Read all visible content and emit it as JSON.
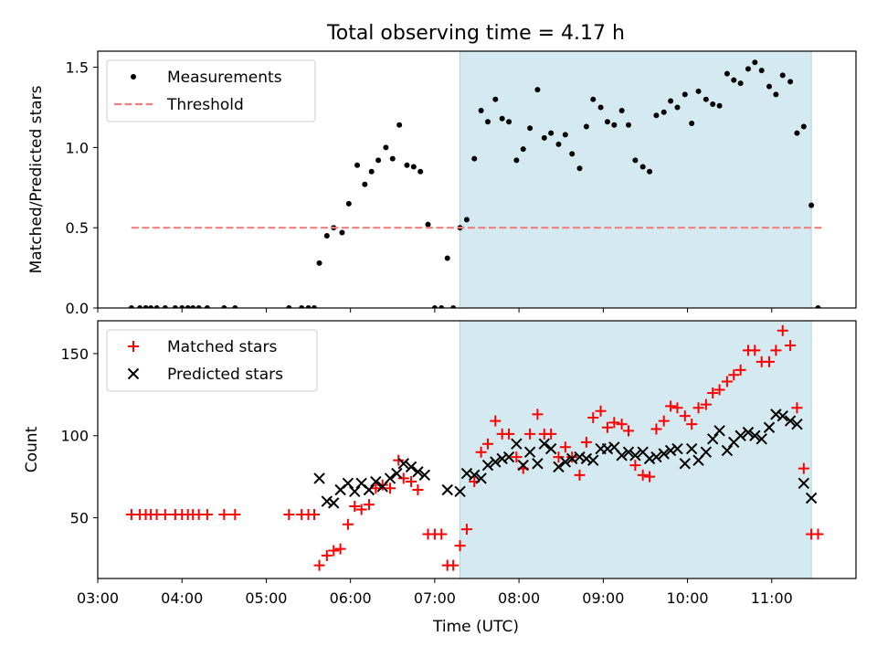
{
  "title": "Total observing time = 4.17 h",
  "chart_data": [
    {
      "type": "scatter",
      "xlabel": "Time (UTC)",
      "ylabel": "Matched/Predicted stars",
      "x_unit": "hours UTC",
      "xlim": [
        3.0,
        12.0
      ],
      "ylim": [
        0.0,
        1.6
      ],
      "x_ticks": [
        "03:00",
        "04:00",
        "05:00",
        "06:00",
        "07:00",
        "08:00",
        "09:00",
        "10:00",
        "11:00"
      ],
      "y_ticks": [
        "0.0",
        "0.5",
        "1.0",
        "1.5"
      ],
      "shaded_region": {
        "x": [
          7.3,
          11.47
        ],
        "color": "#d4eaf0"
      },
      "legend_position": "upper left",
      "series": [
        {
          "name": "Measurements",
          "color": "#000000",
          "marker": "dot",
          "points": [
            [
              3.4,
              0
            ],
            [
              3.5,
              0
            ],
            [
              3.57,
              0
            ],
            [
              3.63,
              0
            ],
            [
              3.7,
              0
            ],
            [
              3.8,
              0
            ],
            [
              3.92,
              0
            ],
            [
              4.0,
              0
            ],
            [
              4.07,
              0
            ],
            [
              4.13,
              0
            ],
            [
              4.2,
              0
            ],
            [
              4.3,
              0
            ],
            [
              4.5,
              0
            ],
            [
              4.63,
              0
            ],
            [
              5.27,
              0
            ],
            [
              5.42,
              0
            ],
            [
              5.5,
              0
            ],
            [
              5.57,
              0
            ],
            [
              5.63,
              0.28
            ],
            [
              5.72,
              0.45
            ],
            [
              5.8,
              0.5
            ],
            [
              5.9,
              0.47
            ],
            [
              5.98,
              0.65
            ],
            [
              6.08,
              0.89
            ],
            [
              6.17,
              0.77
            ],
            [
              6.25,
              0.85
            ],
            [
              6.33,
              0.92
            ],
            [
              6.42,
              1.0
            ],
            [
              6.5,
              0.93
            ],
            [
              6.58,
              1.14
            ],
            [
              6.67,
              0.89
            ],
            [
              6.75,
              0.88
            ],
            [
              6.83,
              0.85
            ],
            [
              6.92,
              0.52
            ],
            [
              7.0,
              0
            ],
            [
              7.08,
              0
            ],
            [
              7.15,
              0.31
            ],
            [
              7.22,
              0
            ],
            [
              7.3,
              0.5
            ],
            [
              7.38,
              0.55
            ],
            [
              7.47,
              0.93
            ],
            [
              7.55,
              1.23
            ],
            [
              7.63,
              1.16
            ],
            [
              7.72,
              1.3
            ],
            [
              7.8,
              1.18
            ],
            [
              7.88,
              1.16
            ],
            [
              7.97,
              0.92
            ],
            [
              8.05,
              0.99
            ],
            [
              8.13,
              1.12
            ],
            [
              8.22,
              1.36
            ],
            [
              8.3,
              1.06
            ],
            [
              8.38,
              1.09
            ],
            [
              8.47,
              1.02
            ],
            [
              8.55,
              1.08
            ],
            [
              8.63,
              0.96
            ],
            [
              8.72,
              0.87
            ],
            [
              8.8,
              1.13
            ],
            [
              8.88,
              1.3
            ],
            [
              8.97,
              1.25
            ],
            [
              9.05,
              1.16
            ],
            [
              9.13,
              1.14
            ],
            [
              9.22,
              1.23
            ],
            [
              9.3,
              1.14
            ],
            [
              9.38,
              0.92
            ],
            [
              9.47,
              0.88
            ],
            [
              9.55,
              0.85
            ],
            [
              9.63,
              1.2
            ],
            [
              9.72,
              1.22
            ],
            [
              9.8,
              1.29
            ],
            [
              9.88,
              1.25
            ],
            [
              9.97,
              1.33
            ],
            [
              10.05,
              1.15
            ],
            [
              10.13,
              1.35
            ],
            [
              10.22,
              1.3
            ],
            [
              10.3,
              1.27
            ],
            [
              10.38,
              1.26
            ],
            [
              10.47,
              1.46
            ],
            [
              10.55,
              1.42
            ],
            [
              10.63,
              1.4
            ],
            [
              10.72,
              1.49
            ],
            [
              10.8,
              1.53
            ],
            [
              10.88,
              1.48
            ],
            [
              10.97,
              1.38
            ],
            [
              11.05,
              1.33
            ],
            [
              11.13,
              1.45
            ],
            [
              11.22,
              1.41
            ],
            [
              11.3,
              1.09
            ],
            [
              11.38,
              1.13
            ],
            [
              11.47,
              0.64
            ],
            [
              11.55,
              0
            ]
          ]
        },
        {
          "name": "Threshold",
          "color": "#f08080",
          "style": "dashed",
          "points": [
            [
              3.4,
              0.5
            ],
            [
              11.62,
              0.5
            ]
          ]
        }
      ]
    },
    {
      "type": "scatter",
      "xlabel": "Time (UTC)",
      "ylabel": "Count",
      "x_unit": "hours UTC",
      "xlim": [
        3.0,
        12.0
      ],
      "ylim": [
        13,
        170
      ],
      "x_ticks": [
        "03:00",
        "04:00",
        "05:00",
        "06:00",
        "07:00",
        "08:00",
        "09:00",
        "10:00",
        "11:00"
      ],
      "y_ticks": [
        "50",
        "100",
        "150"
      ],
      "shaded_region": {
        "x": [
          7.3,
          11.47
        ],
        "color": "#d4eaf0"
      },
      "legend_position": "upper left",
      "series": [
        {
          "name": "Matched stars",
          "color": "#ff0000",
          "marker": "plus",
          "points": [
            [
              3.4,
              52
            ],
            [
              3.5,
              52
            ],
            [
              3.57,
              52
            ],
            [
              3.63,
              52
            ],
            [
              3.7,
              52
            ],
            [
              3.8,
              52
            ],
            [
              3.92,
              52
            ],
            [
              4.0,
              52
            ],
            [
              4.07,
              52
            ],
            [
              4.13,
              52
            ],
            [
              4.2,
              52
            ],
            [
              4.3,
              52
            ],
            [
              4.5,
              52
            ],
            [
              4.63,
              52
            ],
            [
              5.27,
              52
            ],
            [
              5.42,
              52
            ],
            [
              5.5,
              52
            ],
            [
              5.57,
              52
            ],
            [
              5.63,
              21
            ],
            [
              5.72,
              27
            ],
            [
              5.8,
              30
            ],
            [
              5.88,
              31
            ],
            [
              5.97,
              46
            ],
            [
              6.05,
              57
            ],
            [
              6.13,
              55
            ],
            [
              6.22,
              58
            ],
            [
              6.3,
              68
            ],
            [
              6.38,
              70
            ],
            [
              6.47,
              68
            ],
            [
              6.57,
              85
            ],
            [
              6.63,
              74
            ],
            [
              6.72,
              72
            ],
            [
              6.8,
              67
            ],
            [
              6.92,
              40
            ],
            [
              7.0,
              40
            ],
            [
              7.08,
              40
            ],
            [
              7.15,
              21
            ],
            [
              7.22,
              21
            ],
            [
              7.3,
              33
            ],
            [
              7.38,
              43
            ],
            [
              7.47,
              72
            ],
            [
              7.55,
              90
            ],
            [
              7.63,
              95
            ],
            [
              7.72,
              109
            ],
            [
              7.8,
              101
            ],
            [
              7.88,
              101
            ],
            [
              7.97,
              87
            ],
            [
              8.05,
              80
            ],
            [
              8.13,
              101
            ],
            [
              8.22,
              113
            ],
            [
              8.3,
              101
            ],
            [
              8.38,
              101
            ],
            [
              8.47,
              87
            ],
            [
              8.55,
              93
            ],
            [
              8.63,
              87
            ],
            [
              8.72,
              76
            ],
            [
              8.8,
              96
            ],
            [
              8.88,
              111
            ],
            [
              8.97,
              115
            ],
            [
              9.05,
              105
            ],
            [
              9.13,
              108
            ],
            [
              9.22,
              107
            ],
            [
              9.3,
              103
            ],
            [
              9.38,
              82
            ],
            [
              9.47,
              76
            ],
            [
              9.55,
              75
            ],
            [
              9.63,
              104
            ],
            [
              9.72,
              109
            ],
            [
              9.8,
              118
            ],
            [
              9.88,
              117
            ],
            [
              9.97,
              112
            ],
            [
              10.05,
              107
            ],
            [
              10.13,
              117
            ],
            [
              10.22,
              119
            ],
            [
              10.3,
              126
            ],
            [
              10.38,
              128
            ],
            [
              10.47,
              133
            ],
            [
              10.55,
              137
            ],
            [
              10.63,
              140
            ],
            [
              10.72,
              152
            ],
            [
              10.8,
              152
            ],
            [
              10.88,
              145
            ],
            [
              10.97,
              145
            ],
            [
              11.05,
              152
            ],
            [
              11.13,
              164
            ],
            [
              11.22,
              155
            ],
            [
              11.3,
              117
            ],
            [
              11.38,
              80
            ],
            [
              11.47,
              40
            ],
            [
              11.55,
              40
            ]
          ]
        },
        {
          "name": "Predicted stars",
          "color": "#000000",
          "marker": "x",
          "points": [
            [
              5.63,
              74
            ],
            [
              5.72,
              60
            ],
            [
              5.8,
              59
            ],
            [
              5.88,
              67
            ],
            [
              5.97,
              71
            ],
            [
              6.05,
              66
            ],
            [
              6.13,
              71
            ],
            [
              6.22,
              67
            ],
            [
              6.3,
              72
            ],
            [
              6.38,
              69
            ],
            [
              6.47,
              74
            ],
            [
              6.55,
              77
            ],
            [
              6.63,
              83
            ],
            [
              6.72,
              81
            ],
            [
              6.8,
              78
            ],
            [
              6.88,
              76
            ],
            [
              7.15,
              67
            ],
            [
              7.3,
              66
            ],
            [
              7.38,
              77
            ],
            [
              7.47,
              76
            ],
            [
              7.55,
              74
            ],
            [
              7.63,
              82
            ],
            [
              7.72,
              84
            ],
            [
              7.8,
              86
            ],
            [
              7.88,
              87
            ],
            [
              7.97,
              95
            ],
            [
              8.05,
              82
            ],
            [
              8.13,
              90
            ],
            [
              8.22,
              83
            ],
            [
              8.3,
              95
            ],
            [
              8.38,
              92
            ],
            [
              8.47,
              81
            ],
            [
              8.55,
              84
            ],
            [
              8.63,
              86
            ],
            [
              8.72,
              87
            ],
            [
              8.8,
              86
            ],
            [
              8.88,
              85
            ],
            [
              8.97,
              92
            ],
            [
              9.05,
              92
            ],
            [
              9.13,
              93
            ],
            [
              9.22,
              88
            ],
            [
              9.3,
              90
            ],
            [
              9.38,
              88
            ],
            [
              9.47,
              90
            ],
            [
              9.55,
              86
            ],
            [
              9.63,
              87
            ],
            [
              9.72,
              89
            ],
            [
              9.8,
              91
            ],
            [
              9.88,
              92
            ],
            [
              9.97,
              83
            ],
            [
              10.05,
              92
            ],
            [
              10.13,
              85
            ],
            [
              10.22,
              90
            ],
            [
              10.3,
              98
            ],
            [
              10.38,
              103
            ],
            [
              10.47,
              91
            ],
            [
              10.55,
              96
            ],
            [
              10.63,
              100
            ],
            [
              10.72,
              102
            ],
            [
              10.8,
              100
            ],
            [
              10.88,
              98
            ],
            [
              10.97,
              105
            ],
            [
              11.05,
              113
            ],
            [
              11.13,
              112
            ],
            [
              11.22,
              109
            ],
            [
              11.3,
              107
            ],
            [
              11.38,
              71
            ],
            [
              11.47,
              62
            ]
          ]
        }
      ]
    }
  ]
}
